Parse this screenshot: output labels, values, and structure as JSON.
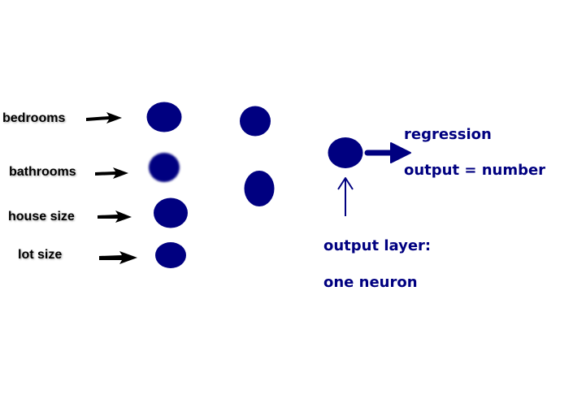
{
  "colors": {
    "neuron": "#000080",
    "text_output": "#000080",
    "arrow_input": "#000000",
    "background": "#ffffff"
  },
  "inputs": [
    {
      "label": "bedrooms"
    },
    {
      "label": "bathrooms"
    },
    {
      "label": "house size"
    },
    {
      "label": "lot size"
    }
  ],
  "output": {
    "task": "regression",
    "description": "output = number",
    "layer_title": "output layer:",
    "layer_desc": "one neuron"
  }
}
